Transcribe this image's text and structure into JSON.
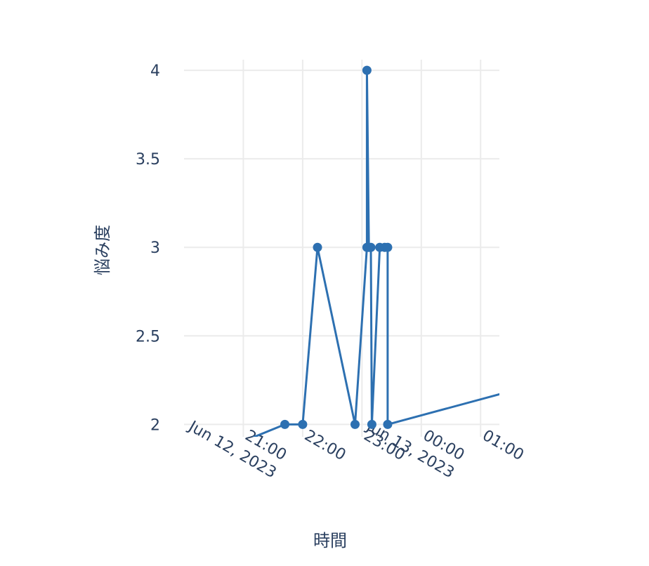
{
  "chart_data": {
    "type": "line",
    "xlabel": "時間",
    "ylabel": "悩み度",
    "x_axis_type": "date",
    "x_range": [
      "2023-06-12 20:00",
      "2023-06-13 01:19"
    ],
    "ylim": [
      1.93,
      4.06
    ],
    "grid": true,
    "line_color": "#2d70b1",
    "y_ticks": [
      {
        "value": 2,
        "label": "2"
      },
      {
        "value": 2.5,
        "label": "2.5"
      },
      {
        "value": 3,
        "label": "3"
      },
      {
        "value": 3.5,
        "label": "3.5"
      },
      {
        "value": 4,
        "label": "4"
      }
    ],
    "x_ticks": [
      {
        "time": "2023-06-12 21:00",
        "line1": "21:00",
        "line2": "Jun 12, 2023"
      },
      {
        "time": "2023-06-12 22:00",
        "line1": "22:00",
        "line2": ""
      },
      {
        "time": "2023-06-12 23:00",
        "line1": "23:00",
        "line2": ""
      },
      {
        "time": "2023-06-13 00:00",
        "line1": "00:00",
        "line2": "Jun 13, 2023"
      },
      {
        "time": "2023-06-13 01:00",
        "line1": "01:00",
        "line2": ""
      }
    ],
    "series": [
      {
        "points": [
          {
            "x": "2023-06-12 20:58",
            "y": 1.9,
            "marker": false
          },
          {
            "x": "2023-06-12 21:42",
            "y": 2,
            "marker": true
          },
          {
            "x": "2023-06-12 22:00",
            "y": 2,
            "marker": true
          },
          {
            "x": "2023-06-12 22:15",
            "y": 3,
            "marker": true
          },
          {
            "x": "2023-06-12 22:53",
            "y": 2,
            "marker": true
          },
          {
            "x": "2023-06-12 23:05",
            "y": 3,
            "marker": true
          },
          {
            "x": "2023-06-12 23:05",
            "y": 4,
            "marker": true
          },
          {
            "x": "2023-06-12 23:07",
            "y": 3,
            "marker": true
          },
          {
            "x": "2023-06-12 23:09",
            "y": 3,
            "marker": true
          },
          {
            "x": "2023-06-12 23:10",
            "y": 2,
            "marker": true
          },
          {
            "x": "2023-06-12 23:18",
            "y": 3,
            "marker": true
          },
          {
            "x": "2023-06-12 23:23",
            "y": 3,
            "marker": true
          },
          {
            "x": "2023-06-12 23:26",
            "y": 3,
            "marker": true
          },
          {
            "x": "2023-06-12 23:26",
            "y": 2,
            "marker": true
          },
          {
            "x": "2023-06-13 01:19",
            "y": 2.17,
            "marker": false
          }
        ]
      }
    ]
  }
}
